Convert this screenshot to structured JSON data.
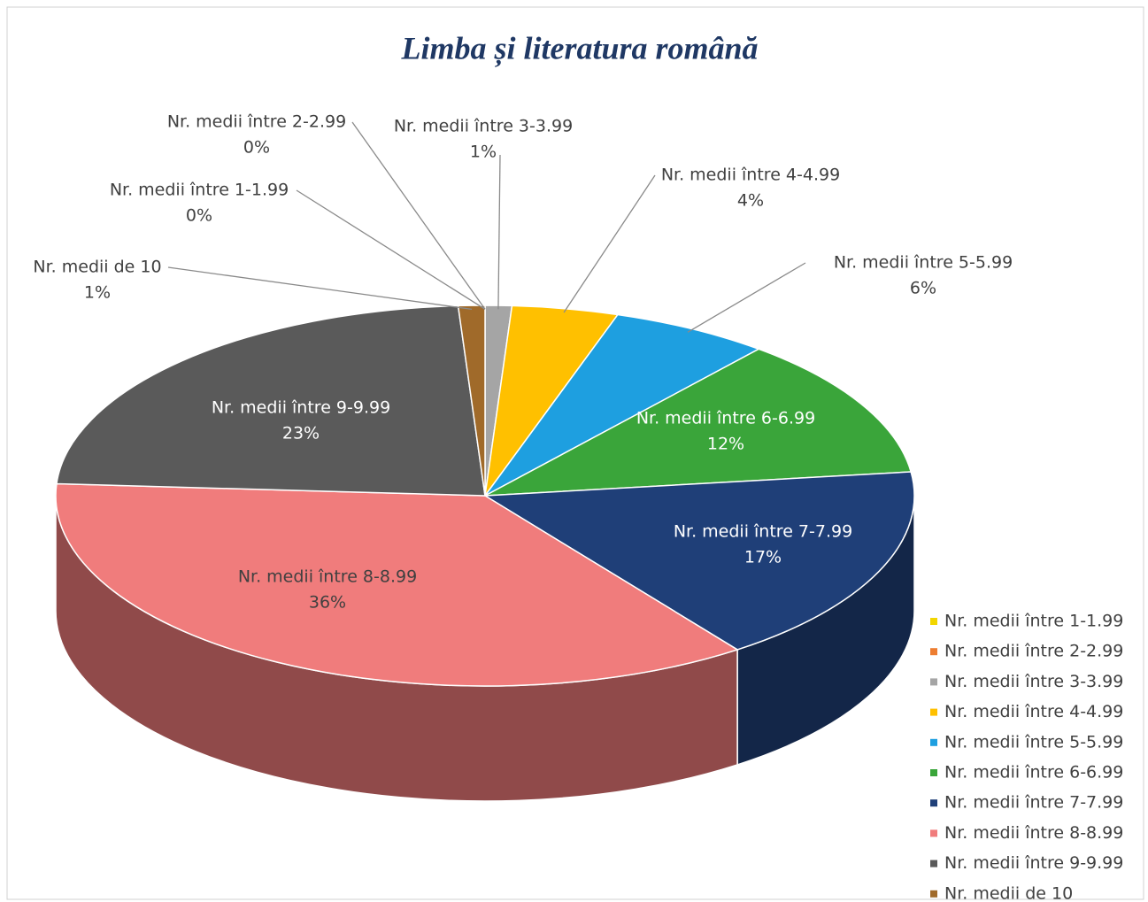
{
  "chart_data": {
    "type": "pie3d",
    "title": "Limba și literatura română",
    "categories": [
      "Nr. medii între 1-1.99",
      "Nr. medii între 2-2.99",
      "Nr. medii între 3-3.99",
      "Nr. medii între 4-4.99",
      "Nr. medii între 5-5.99",
      "Nr. medii între 6-6.99",
      "Nr. medii între 7-7.99",
      "Nr. medii între 8-8.99",
      "Nr. medii între 9-9.99",
      "Nr. medii de 10"
    ],
    "values": [
      0,
      0,
      1,
      4,
      6,
      12,
      17,
      36,
      23,
      1
    ],
    "value_labels": [
      "0%",
      "0%",
      "1%",
      "4%",
      "6%",
      "12%",
      "17%",
      "36%",
      "23%",
      "1%"
    ],
    "colors": [
      "#f2d600",
      "#ed7d31",
      "#a5a5a5",
      "#ffc000",
      "#1e9fe0",
      "#3aa53a",
      "#1f3f78",
      "#f07c7c",
      "#5a5a5a",
      "#a06a2a"
    ],
    "legend": "right-bottom"
  }
}
